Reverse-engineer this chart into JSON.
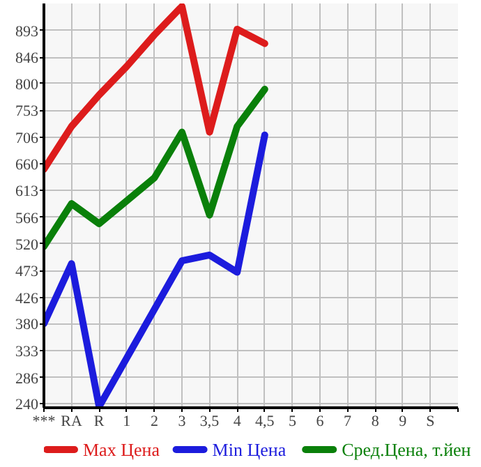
{
  "chart_data": {
    "type": "line",
    "categories": [
      "***",
      "RA",
      "R",
      "1",
      "2",
      "3",
      "3,5",
      "4",
      "4,5",
      "5",
      "6",
      "7",
      "8",
      "9",
      "S"
    ],
    "ylim": [
      233,
      940
    ],
    "yticks": [
      240,
      286,
      333,
      380,
      426,
      473,
      520,
      566,
      613,
      660,
      706,
      753,
      800,
      846,
      893
    ],
    "grid": true,
    "legend": "bottom",
    "series": [
      {
        "name": "Max Цена",
        "color": "#dd1c1c",
        "values": [
          650,
          725,
          780,
          830,
          885,
          935,
          715,
          895,
          870,
          null,
          null,
          null,
          null,
          null,
          null
        ]
      },
      {
        "name": "Min Цена",
        "color": "#1c1cdd",
        "values": [
          380,
          485,
          235,
          320,
          405,
          490,
          500,
          470,
          710,
          null,
          null,
          null,
          null,
          null,
          null
        ]
      },
      {
        "name": "Сред.Цена, т.йен",
        "color": "#0a800a",
        "values": [
          515,
          590,
          555,
          595,
          635,
          715,
          570,
          725,
          790,
          null,
          null,
          null,
          null,
          null,
          null
        ]
      }
    ]
  }
}
